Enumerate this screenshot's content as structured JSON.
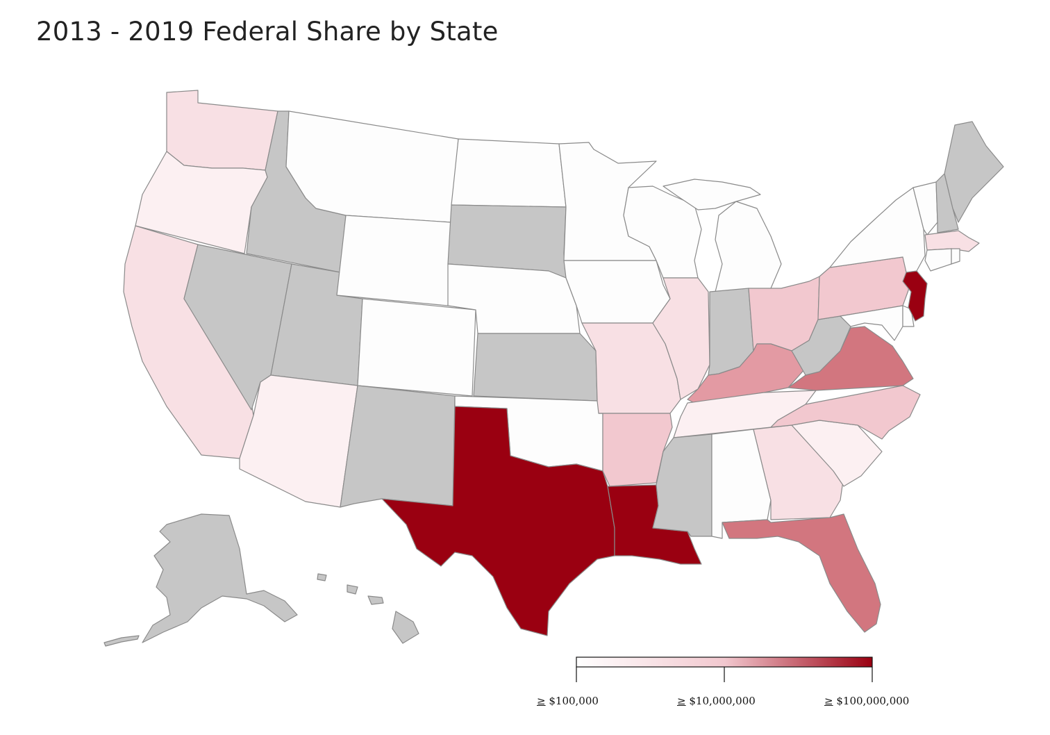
{
  "title": "2013 - 2019 Federal Share by State",
  "colors": {
    "none": "#c6c6c6",
    "s0": "#fdfdfd",
    "s1": "#fcf0f2",
    "s2": "#f8e0e4",
    "s3": "#f2c8cf",
    "s4": "#e39aa3",
    "s5": "#d2767f",
    "s6": "#9a0011"
  },
  "states": [
    {
      "name": "Washington",
      "level": "s2"
    },
    {
      "name": "Oregon",
      "level": "s1"
    },
    {
      "name": "California",
      "level": "s2"
    },
    {
      "name": "Idaho",
      "level": "none"
    },
    {
      "name": "Nevada",
      "level": "none"
    },
    {
      "name": "Utah",
      "level": "none"
    },
    {
      "name": "Arizona",
      "level": "s1"
    },
    {
      "name": "Montana",
      "level": "s0"
    },
    {
      "name": "Wyoming",
      "level": "s0"
    },
    {
      "name": "Colorado",
      "level": "s0"
    },
    {
      "name": "New Mexico",
      "level": "none"
    },
    {
      "name": "North Dakota",
      "level": "s0"
    },
    {
      "name": "South Dakota",
      "level": "none"
    },
    {
      "name": "Nebraska",
      "level": "s0"
    },
    {
      "name": "Kansas",
      "level": "none"
    },
    {
      "name": "Oklahoma",
      "level": "s0"
    },
    {
      "name": "Texas",
      "level": "s6"
    },
    {
      "name": "Minnesota",
      "level": "s0"
    },
    {
      "name": "Iowa",
      "level": "s0"
    },
    {
      "name": "Missouri",
      "level": "s2"
    },
    {
      "name": "Arkansas",
      "level": "s3"
    },
    {
      "name": "Louisiana",
      "level": "s6"
    },
    {
      "name": "Wisconsin",
      "level": "s0"
    },
    {
      "name": "Illinois",
      "level": "s2"
    },
    {
      "name": "Michigan",
      "level": "s0"
    },
    {
      "name": "Indiana",
      "level": "none"
    },
    {
      "name": "Ohio",
      "level": "s3"
    },
    {
      "name": "Kentucky",
      "level": "s4"
    },
    {
      "name": "Tennessee",
      "level": "s1"
    },
    {
      "name": "Mississippi",
      "level": "none"
    },
    {
      "name": "Alabama",
      "level": "s0"
    },
    {
      "name": "Georgia",
      "level": "s2"
    },
    {
      "name": "Florida",
      "level": "s5"
    },
    {
      "name": "South Carolina",
      "level": "s1"
    },
    {
      "name": "North Carolina",
      "level": "s3"
    },
    {
      "name": "Virginia",
      "level": "s5"
    },
    {
      "name": "West Virginia",
      "level": "none"
    },
    {
      "name": "Pennsylvania",
      "level": "s3"
    },
    {
      "name": "New York",
      "level": "s0"
    },
    {
      "name": "New Jersey",
      "level": "s6"
    },
    {
      "name": "Delaware",
      "level": "s0"
    },
    {
      "name": "Maryland",
      "level": "s0"
    },
    {
      "name": "Vermont",
      "level": "s0"
    },
    {
      "name": "New Hampshire",
      "level": "none"
    },
    {
      "name": "Maine",
      "level": "none"
    },
    {
      "name": "Massachusetts",
      "level": "s2"
    },
    {
      "name": "Connecticut",
      "level": "s0"
    },
    {
      "name": "Rhode Island",
      "level": "s0"
    },
    {
      "name": "Alaska",
      "level": "none"
    },
    {
      "name": "Hawaii",
      "level": "none"
    }
  ],
  "legend": {
    "gradient_start": "#ffffff",
    "gradient_mid": "#f2c8cf",
    "gradient_end": "#9a0011",
    "labels": [
      {
        "symbol": "≥",
        "value": "$100,000"
      },
      {
        "symbol": "≥",
        "value": "$10,000,000"
      },
      {
        "symbol": "≥",
        "value": "$100,000,000"
      }
    ]
  }
}
